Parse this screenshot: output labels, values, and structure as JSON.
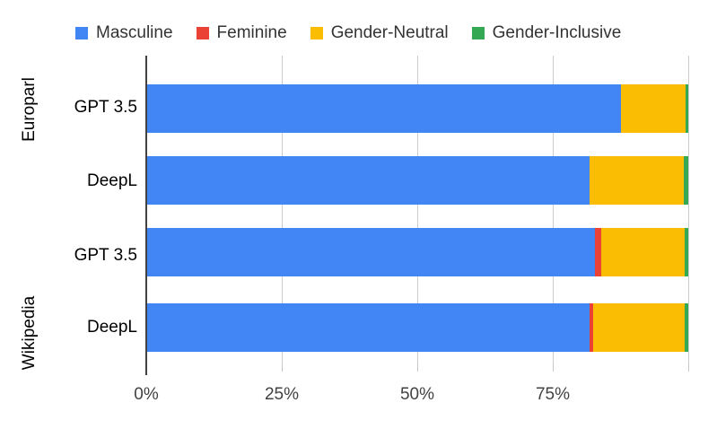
{
  "chart_data": {
    "type": "bar",
    "orientation": "horizontal",
    "stacked": true,
    "title": "",
    "xlabel": "",
    "ylabel": "",
    "value_unit": "percent",
    "xlim": [
      0,
      100
    ],
    "grid": true,
    "legend_position": "top",
    "x_ticks": [
      {
        "value": 0,
        "label": "0%"
      },
      {
        "value": 25,
        "label": "25%"
      },
      {
        "value": 50,
        "label": "50%"
      },
      {
        "value": 75,
        "label": "75%"
      },
      {
        "value": 100,
        "label": ""
      }
    ],
    "groups": [
      {
        "label": "Europarl"
      },
      {
        "label": "Wikipedia"
      }
    ],
    "categories": [
      "GPT 3.5",
      "DeepL",
      "GPT 3.5",
      "DeepL"
    ],
    "row_group_index": [
      0,
      0,
      1,
      1
    ],
    "series": [
      {
        "name": "Masculine",
        "color": "#4285F4",
        "values": [
          87.5,
          81.8,
          82.7,
          81.8
        ]
      },
      {
        "name": "Feminine",
        "color": "#EA4335",
        "values": [
          0,
          0,
          1.2,
          0.6
        ]
      },
      {
        "name": "Gender-Neutral",
        "color": "#FBBC04",
        "values": [
          12.0,
          17.4,
          15.5,
          17.0
        ]
      },
      {
        "name": "Gender-Inclusive",
        "color": "#34A853",
        "values": [
          0.5,
          0.8,
          0.6,
          0.6
        ]
      }
    ],
    "colors": {
      "axis_line": "#424242",
      "gridline": "#cccccc",
      "legend_text": "#333333",
      "axis_text": "#424242",
      "category_text": "#000000",
      "background": "#ffffff"
    }
  }
}
